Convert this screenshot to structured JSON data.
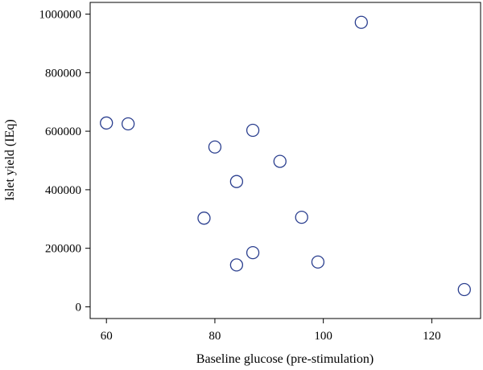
{
  "chart_data": {
    "type": "scatter",
    "title": "",
    "xlabel": "Baseline glucose (pre-stimulation)",
    "ylabel": "Islet yield (IEq)",
    "xlim": [
      57,
      129
    ],
    "ylim": [
      -40000,
      1040000
    ],
    "xticks": [
      60,
      80,
      100,
      120
    ],
    "yticks": [
      0,
      200000,
      400000,
      600000,
      800000,
      1000000
    ],
    "xtick_labels": [
      "60",
      "80",
      "100",
      "120"
    ],
    "ytick_labels": [
      "0",
      "200000",
      "400000",
      "600000",
      "800000",
      "1000000"
    ],
    "grid": false,
    "marker": "open-circle",
    "marker_color": "#2b3f8f",
    "series": [
      {
        "points": [
          {
            "x": 60,
            "y": 628000
          },
          {
            "x": 64,
            "y": 625000
          },
          {
            "x": 78,
            "y": 303000
          },
          {
            "x": 80,
            "y": 546000
          },
          {
            "x": 84,
            "y": 428000
          },
          {
            "x": 84,
            "y": 143000
          },
          {
            "x": 87,
            "y": 603000
          },
          {
            "x": 87,
            "y": 185000
          },
          {
            "x": 92,
            "y": 497000
          },
          {
            "x": 96,
            "y": 306000
          },
          {
            "x": 99,
            "y": 153000
          },
          {
            "x": 107,
            "y": 972000
          },
          {
            "x": 126,
            "y": 59000
          }
        ]
      }
    ]
  }
}
